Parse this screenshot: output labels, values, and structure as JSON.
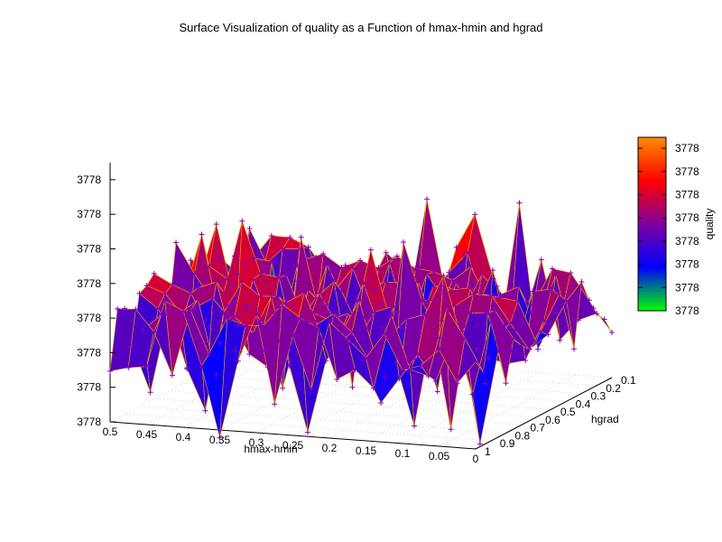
{
  "chart_data": {
    "type": "surface",
    "title": "Surface Visualization of quality as a Function of hmax-hmin and hgrad",
    "xlabel": "hmax-hmin",
    "ylabel": "hgrad",
    "zlabel": "quality",
    "x_ticks": [
      "0.5",
      "0.45",
      "0.4",
      "0.35",
      "0.3",
      "0.25",
      "0.2",
      "0.15",
      "0.1",
      "0.05",
      "0"
    ],
    "y_ticks": [
      "0.1",
      "0.2",
      "0.3",
      "0.4",
      "0.5",
      "0.6",
      "0.7",
      "0.8",
      "0.9",
      "1"
    ],
    "z_ticks": [
      "3778",
      "3778",
      "3778",
      "3778",
      "3778",
      "3778",
      "3778",
      "3778"
    ],
    "colorbar_ticks": [
      "3778",
      "3778",
      "3778",
      "3778",
      "3778",
      "3778",
      "3778",
      "3778"
    ],
    "xlim": [
      0,
      0.5
    ],
    "ylim": [
      0.1,
      1
    ],
    "grid": "dotted base grid",
    "colors": {
      "colormap": [
        "#00ff00",
        "#0000ff",
        "#8000a0",
        "#ff0000",
        "#ff8c00"
      ],
      "points": "#8000c0",
      "mesh_lines": "#ffa000"
    }
  }
}
